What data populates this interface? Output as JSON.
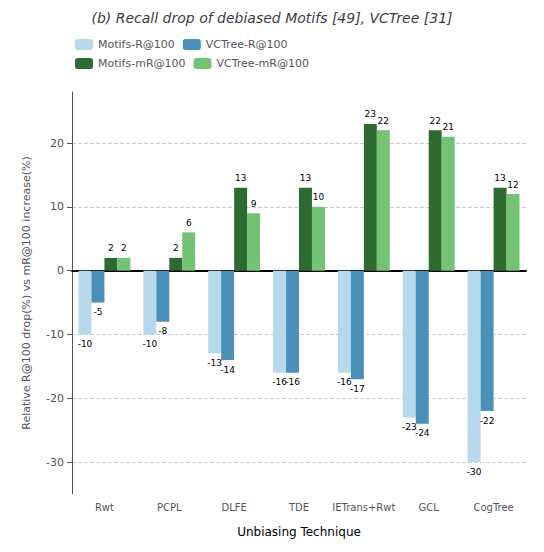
{
  "chart_data": {
    "type": "bar",
    "title": "(b) Recall drop of debiased Motifs [49], VCTree [31]",
    "categories": [
      "Rwt",
      "PCPL",
      "DLFE",
      "TDE",
      "IETrans+Rwt",
      "GCL",
      "CogTree"
    ],
    "series": [
      {
        "name": "Motifs-R@100",
        "color": "#b8d8ec",
        "values": [
          -10,
          -10,
          -13,
          -16,
          -16,
          -23,
          -30
        ]
      },
      {
        "name": "VCTree-R@100",
        "color": "#4a90b8",
        "values": [
          -5,
          -8,
          -14,
          -16,
          -17,
          -24,
          -22
        ]
      },
      {
        "name": "Motifs-mR@100",
        "color": "#2e6b30",
        "values": [
          2,
          2,
          13,
          13,
          23,
          22,
          13
        ]
      },
      {
        "name": "VCTree-mR@100",
        "color": "#74c274",
        "values": [
          2,
          6,
          9,
          10,
          22,
          21,
          12
        ]
      }
    ],
    "xlabel": "Unbiasing Technique",
    "ylabel": "Relative R@100 drop(%) vs mR@100 increase(%)",
    "ylim": [
      -35,
      28
    ],
    "yticks": [
      -30,
      -20,
      -10,
      0,
      10,
      20
    ],
    "grid": true,
    "legend": "upper left",
    "data_labels": true
  }
}
